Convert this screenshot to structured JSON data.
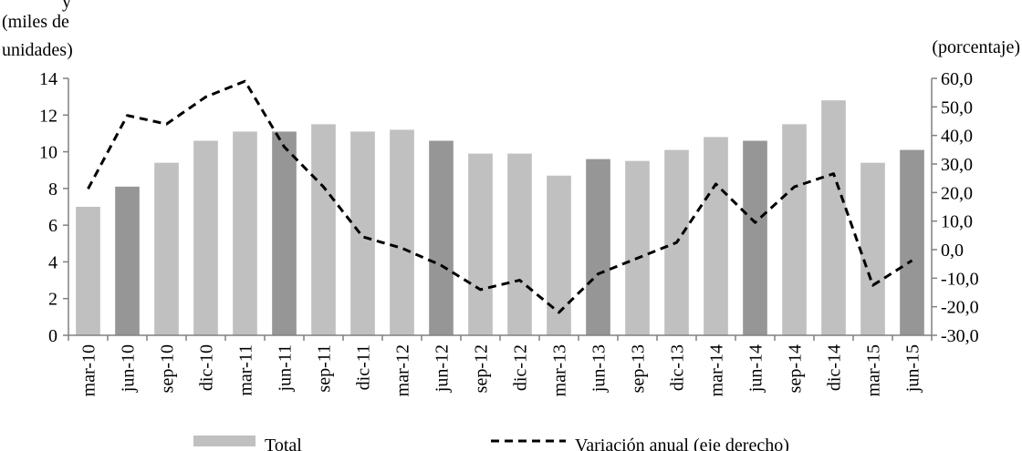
{
  "chart_data": {
    "type": "bar",
    "title_fragment": "y",
    "left_axis_label_line1": "(miles de",
    "left_axis_label_line2": "unidades)",
    "right_axis_label": "(porcentaje)",
    "categories": [
      "mar-10",
      "jun-10",
      "sep-10",
      "dic-10",
      "mar-11",
      "jun-11",
      "sep-11",
      "dic-11",
      "mar-12",
      "jun-12",
      "sep-12",
      "dic-12",
      "mar-13",
      "jun-13",
      "sep-13",
      "dic-13",
      "mar-14",
      "jun-14",
      "sep-14",
      "dic-14",
      "mar-15",
      "jun-15"
    ],
    "series": [
      {
        "name": "Total",
        "axis": "left",
        "values": [
          7.0,
          8.1,
          9.4,
          10.6,
          11.1,
          11.1,
          11.5,
          11.1,
          11.2,
          10.6,
          9.9,
          9.9,
          8.7,
          9.6,
          9.5,
          10.1,
          10.8,
          10.6,
          11.5,
          12.8,
          9.4,
          10.1
        ],
        "color": "#c0c0c0",
        "highlight_color": "#969696",
        "highlight_indices": [
          1,
          5,
          9,
          13,
          17,
          21
        ]
      },
      {
        "name": "Variación anual (eje derecho)",
        "axis": "right",
        "values": [
          21.3,
          47.0,
          44.0,
          53.5,
          59.0,
          36.0,
          22.0,
          4.5,
          0.5,
          -5.5,
          -14.0,
          -10.7,
          -22.0,
          -8.5,
          -3.0,
          2.5,
          23.0,
          9.5,
          22.0,
          26.6,
          -12.5,
          -3.8
        ],
        "color": "#000000",
        "style": "dashed"
      }
    ],
    "left_axis": {
      "min": 0,
      "max": 14,
      "ticks": [
        "0",
        "2",
        "4",
        "6",
        "8",
        "10",
        "12",
        "14"
      ]
    },
    "right_axis": {
      "min": -30,
      "max": 60,
      "ticks": [
        "-30,0",
        "-20,0",
        "-10,0",
        "0,0",
        "10,0",
        "20,0",
        "30,0",
        "40,0",
        "50,0",
        "60,0"
      ]
    },
    "grid": false,
    "legend": {
      "placement": "bottom",
      "entries": [
        "Total",
        "Variación anual (eje derecho)"
      ]
    }
  }
}
